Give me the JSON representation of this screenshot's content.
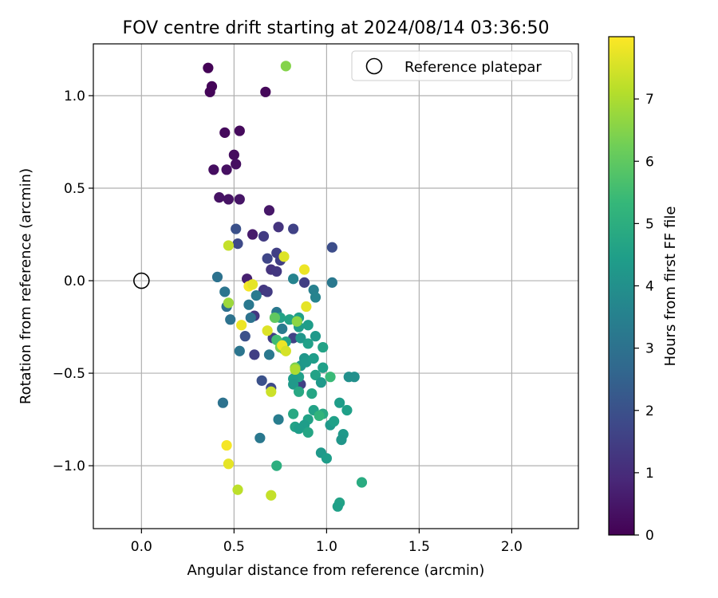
{
  "chart_data": {
    "type": "scatter",
    "title": "FOV centre drift starting at 2024/08/14 03:36:50",
    "xlabel": "Angular distance from reference (arcmin)",
    "ylabel": "Rotation from reference (arcmin)",
    "xlim": [
      -0.26,
      2.36
    ],
    "ylim": [
      -1.34,
      1.28
    ],
    "xticks": [
      0.0,
      0.5,
      1.0,
      1.5,
      2.0
    ],
    "xtick_labels": [
      "0.0",
      "0.5",
      "1.0",
      "1.5",
      "2.0"
    ],
    "yticks": [
      -1.0,
      -0.5,
      0.0,
      0.5,
      1.0
    ],
    "ytick_labels": [
      "−1.0",
      "−0.5",
      "0.0",
      "0.5",
      "1.0"
    ],
    "grid": true,
    "legend": {
      "label": "Reference platepar",
      "placement": "top-right",
      "marker": "open-circle"
    },
    "reference_point": {
      "x": 0.0,
      "y": 0.0
    },
    "colorbar": {
      "label": "Hours from first FF file",
      "colormap": "viridis",
      "range": [
        0,
        8
      ],
      "ticks": [
        0,
        1,
        2,
        3,
        4,
        5,
        6,
        7
      ],
      "tick_labels": [
        "0",
        "1",
        "2",
        "3",
        "4",
        "5",
        "6",
        "7"
      ]
    },
    "colormap_stops": [
      "#440154",
      "#482878",
      "#3e4989",
      "#31688e",
      "#26828e",
      "#1f9e89",
      "#35b779",
      "#6ece58",
      "#b5de2b",
      "#fde725"
    ],
    "points": [
      {
        "x": 0.36,
        "y": 1.15,
        "h": 0.05
      },
      {
        "x": 0.38,
        "y": 1.05,
        "h": 0.1
      },
      {
        "x": 0.37,
        "y": 1.02,
        "h": 0.1
      },
      {
        "x": 0.67,
        "y": 1.02,
        "h": 0.15
      },
      {
        "x": 0.45,
        "y": 0.8,
        "h": 0.2
      },
      {
        "x": 0.53,
        "y": 0.81,
        "h": 0.2
      },
      {
        "x": 0.5,
        "y": 0.68,
        "h": 0.25
      },
      {
        "x": 0.51,
        "y": 0.63,
        "h": 0.3
      },
      {
        "x": 0.39,
        "y": 0.6,
        "h": 0.3
      },
      {
        "x": 0.46,
        "y": 0.6,
        "h": 0.35
      },
      {
        "x": 0.42,
        "y": 0.45,
        "h": 0.4
      },
      {
        "x": 0.47,
        "y": 0.44,
        "h": 0.4
      },
      {
        "x": 0.53,
        "y": 0.44,
        "h": 0.45
      },
      {
        "x": 0.69,
        "y": 0.38,
        "h": 0.5
      },
      {
        "x": 0.6,
        "y": 0.25,
        "h": 0.6
      },
      {
        "x": 0.57,
        "y": 0.01,
        "h": 0.7
      },
      {
        "x": 0.74,
        "y": 0.29,
        "h": 1.2
      },
      {
        "x": 0.66,
        "y": 0.24,
        "h": 1.4
      },
      {
        "x": 0.82,
        "y": 0.28,
        "h": 1.6
      },
      {
        "x": 0.51,
        "y": 0.28,
        "h": 2.0
      },
      {
        "x": 0.52,
        "y": 0.2,
        "h": 1.8
      },
      {
        "x": 0.73,
        "y": 0.15,
        "h": 1.5
      },
      {
        "x": 0.68,
        "y": 0.12,
        "h": 1.7
      },
      {
        "x": 0.75,
        "y": 0.11,
        "h": 1.5
      },
      {
        "x": 0.7,
        "y": 0.06,
        "h": 1.2
      },
      {
        "x": 0.73,
        "y": 0.05,
        "h": 1.3
      },
      {
        "x": 1.03,
        "y": 0.18,
        "h": 1.9
      },
      {
        "x": 0.88,
        "y": -0.01,
        "h": 1.5
      },
      {
        "x": 0.66,
        "y": -0.05,
        "h": 1.3
      },
      {
        "x": 0.68,
        "y": -0.06,
        "h": 1.4
      },
      {
        "x": 0.61,
        "y": -0.19,
        "h": 1.3
      },
      {
        "x": 0.56,
        "y": -0.3,
        "h": 2.0
      },
      {
        "x": 0.61,
        "y": -0.4,
        "h": 1.5
      },
      {
        "x": 0.71,
        "y": -0.31,
        "h": 1.5
      },
      {
        "x": 0.82,
        "y": -0.31,
        "h": 1.6
      },
      {
        "x": 0.65,
        "y": -0.54,
        "h": 2.0
      },
      {
        "x": 0.7,
        "y": -0.58,
        "h": 1.8
      },
      {
        "x": 0.86,
        "y": -0.56,
        "h": 1.5
      },
      {
        "x": 0.82,
        "y": 0.01,
        "h": 3.6
      },
      {
        "x": 1.03,
        "y": -0.01,
        "h": 3.2
      },
      {
        "x": 0.41,
        "y": 0.02,
        "h": 3.0
      },
      {
        "x": 0.45,
        "y": -0.06,
        "h": 3.1
      },
      {
        "x": 0.46,
        "y": -0.14,
        "h": 2.9
      },
      {
        "x": 0.48,
        "y": -0.21,
        "h": 3.0
      },
      {
        "x": 0.53,
        "y": -0.38,
        "h": 3.1
      },
      {
        "x": 0.58,
        "y": -0.13,
        "h": 3.2
      },
      {
        "x": 0.59,
        "y": -0.2,
        "h": 3.0
      },
      {
        "x": 0.62,
        "y": -0.08,
        "h": 3.3
      },
      {
        "x": 0.69,
        "y": -0.4,
        "h": 3.2
      },
      {
        "x": 0.73,
        "y": -0.17,
        "h": 3.2
      },
      {
        "x": 0.76,
        "y": -0.26,
        "h": 3.3
      },
      {
        "x": 0.74,
        "y": -0.75,
        "h": 3.4
      },
      {
        "x": 0.44,
        "y": -0.66,
        "h": 3.0
      },
      {
        "x": 0.64,
        "y": -0.85,
        "h": 3.2
      },
      {
        "x": 0.93,
        "y": -0.05,
        "h": 3.5
      },
      {
        "x": 0.94,
        "y": -0.09,
        "h": 3.6
      },
      {
        "x": 0.75,
        "y": -0.2,
        "h": 4.6
      },
      {
        "x": 0.8,
        "y": -0.21,
        "h": 4.6
      },
      {
        "x": 0.85,
        "y": -0.2,
        "h": 4.5
      },
      {
        "x": 0.85,
        "y": -0.25,
        "h": 4.4
      },
      {
        "x": 0.9,
        "y": -0.24,
        "h": 4.4
      },
      {
        "x": 0.94,
        "y": -0.3,
        "h": 4.3
      },
      {
        "x": 0.86,
        "y": -0.31,
        "h": 4.2
      },
      {
        "x": 0.78,
        "y": -0.33,
        "h": 4.6
      },
      {
        "x": 0.9,
        "y": -0.34,
        "h": 4.5
      },
      {
        "x": 0.98,
        "y": -0.36,
        "h": 4.6
      },
      {
        "x": 0.77,
        "y": -0.37,
        "h": 4.8
      },
      {
        "x": 0.88,
        "y": -0.42,
        "h": 4.2
      },
      {
        "x": 0.86,
        "y": -0.46,
        "h": 4.2
      },
      {
        "x": 0.89,
        "y": -0.44,
        "h": 4.3
      },
      {
        "x": 0.93,
        "y": -0.42,
        "h": 4.4
      },
      {
        "x": 0.98,
        "y": -0.47,
        "h": 4.5
      },
      {
        "x": 0.94,
        "y": -0.51,
        "h": 4.6
      },
      {
        "x": 0.85,
        "y": -0.52,
        "h": 4.5
      },
      {
        "x": 0.82,
        "y": -0.53,
        "h": 4.4
      },
      {
        "x": 0.82,
        "y": -0.56,
        "h": 4.3
      },
      {
        "x": 0.97,
        "y": -0.55,
        "h": 4.3
      },
      {
        "x": 1.02,
        "y": -0.52,
        "h": 5.4
      },
      {
        "x": 1.12,
        "y": -0.52,
        "h": 4.0
      },
      {
        "x": 1.15,
        "y": -0.52,
        "h": 4.0
      },
      {
        "x": 0.85,
        "y": -0.6,
        "h": 4.8
      },
      {
        "x": 0.92,
        "y": -0.61,
        "h": 4.7
      },
      {
        "x": 1.07,
        "y": -0.66,
        "h": 4.4
      },
      {
        "x": 1.11,
        "y": -0.7,
        "h": 4.5
      },
      {
        "x": 0.93,
        "y": -0.7,
        "h": 4.6
      },
      {
        "x": 0.98,
        "y": -0.72,
        "h": 4.8
      },
      {
        "x": 0.96,
        "y": -0.73,
        "h": 5.2
      },
      {
        "x": 0.82,
        "y": -0.72,
        "h": 4.8
      },
      {
        "x": 0.9,
        "y": -0.75,
        "h": 4.6
      },
      {
        "x": 0.88,
        "y": -0.78,
        "h": 4.4
      },
      {
        "x": 1.02,
        "y": -0.78,
        "h": 4.3
      },
      {
        "x": 1.04,
        "y": -0.76,
        "h": 4.5
      },
      {
        "x": 0.83,
        "y": -0.79,
        "h": 4.6
      },
      {
        "x": 0.85,
        "y": -0.8,
        "h": 4.4
      },
      {
        "x": 0.9,
        "y": -0.82,
        "h": 4.7
      },
      {
        "x": 1.09,
        "y": -0.83,
        "h": 4.3
      },
      {
        "x": 1.08,
        "y": -0.86,
        "h": 4.2
      },
      {
        "x": 0.97,
        "y": -0.93,
        "h": 4.3
      },
      {
        "x": 1.0,
        "y": -0.96,
        "h": 4.4
      },
      {
        "x": 0.73,
        "y": -1.0,
        "h": 5.0
      },
      {
        "x": 1.19,
        "y": -1.09,
        "h": 4.9
      },
      {
        "x": 1.07,
        "y": -1.2,
        "h": 4.6
      },
      {
        "x": 1.06,
        "y": -1.22,
        "h": 4.5
      },
      {
        "x": 0.73,
        "y": -0.32,
        "h": 5.5
      },
      {
        "x": 0.72,
        "y": -0.2,
        "h": 6.0
      },
      {
        "x": 0.75,
        "y": -0.36,
        "h": 6.4
      },
      {
        "x": 0.83,
        "y": -0.47,
        "h": 6.4
      },
      {
        "x": 0.78,
        "y": 1.16,
        "h": 6.5
      },
      {
        "x": 0.47,
        "y": -0.12,
        "h": 6.8
      },
      {
        "x": 0.47,
        "y": 0.19,
        "h": 7.3
      },
      {
        "x": 0.52,
        "y": -1.13,
        "h": 7.2
      },
      {
        "x": 0.7,
        "y": -1.16,
        "h": 7.3
      },
      {
        "x": 0.7,
        "y": -0.6,
        "h": 7.4
      },
      {
        "x": 0.83,
        "y": -0.48,
        "h": 7.0
      },
      {
        "x": 0.84,
        "y": -0.22,
        "h": 6.6
      },
      {
        "x": 0.77,
        "y": 0.13,
        "h": 7.6
      },
      {
        "x": 0.88,
        "y": 0.06,
        "h": 7.8
      },
      {
        "x": 0.89,
        "y": -0.14,
        "h": 7.7
      },
      {
        "x": 0.58,
        "y": -0.03,
        "h": 7.9
      },
      {
        "x": 0.6,
        "y": -0.02,
        "h": 7.7
      },
      {
        "x": 0.54,
        "y": -0.24,
        "h": 7.8
      },
      {
        "x": 0.68,
        "y": -0.27,
        "h": 7.6
      },
      {
        "x": 0.76,
        "y": -0.35,
        "h": 7.8
      },
      {
        "x": 0.78,
        "y": -0.38,
        "h": 7.5
      },
      {
        "x": 0.46,
        "y": -0.89,
        "h": 7.9
      },
      {
        "x": 0.47,
        "y": -0.99,
        "h": 7.7
      }
    ]
  }
}
